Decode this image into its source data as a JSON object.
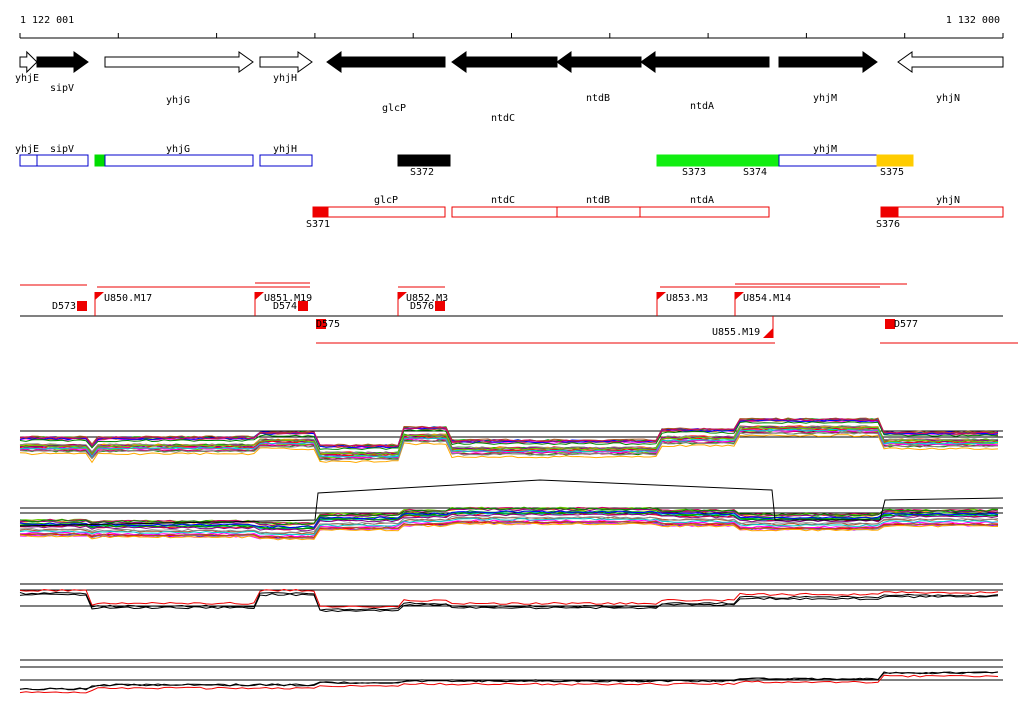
{
  "ruler": {
    "start": "1 122 001",
    "end": "1 132 000"
  },
  "genes": [
    "yhjE",
    "sipV",
    "yhjG",
    "yhjH",
    "glcP",
    "ntdC",
    "ntdB",
    "ntdA",
    "yhjM",
    "yhjN"
  ],
  "segments": {
    "labels": [
      "yhjE",
      "sipV",
      "yhjG",
      "yhjH",
      "yhjM"
    ],
    "ids": [
      "S372",
      "S373",
      "S374",
      "S375"
    ]
  },
  "transcripts": {
    "labels": [
      "glcP",
      "ntdC",
      "ntdB",
      "ntdA",
      "yhjN"
    ],
    "ids": [
      "S371",
      "S376"
    ]
  },
  "features": [
    "D573",
    "U850.M17",
    "U851.M19",
    "D574",
    "U852.M3",
    "D576",
    "D575",
    "U853.M3",
    "U854.M14",
    "U855.M19",
    "D577"
  ]
}
